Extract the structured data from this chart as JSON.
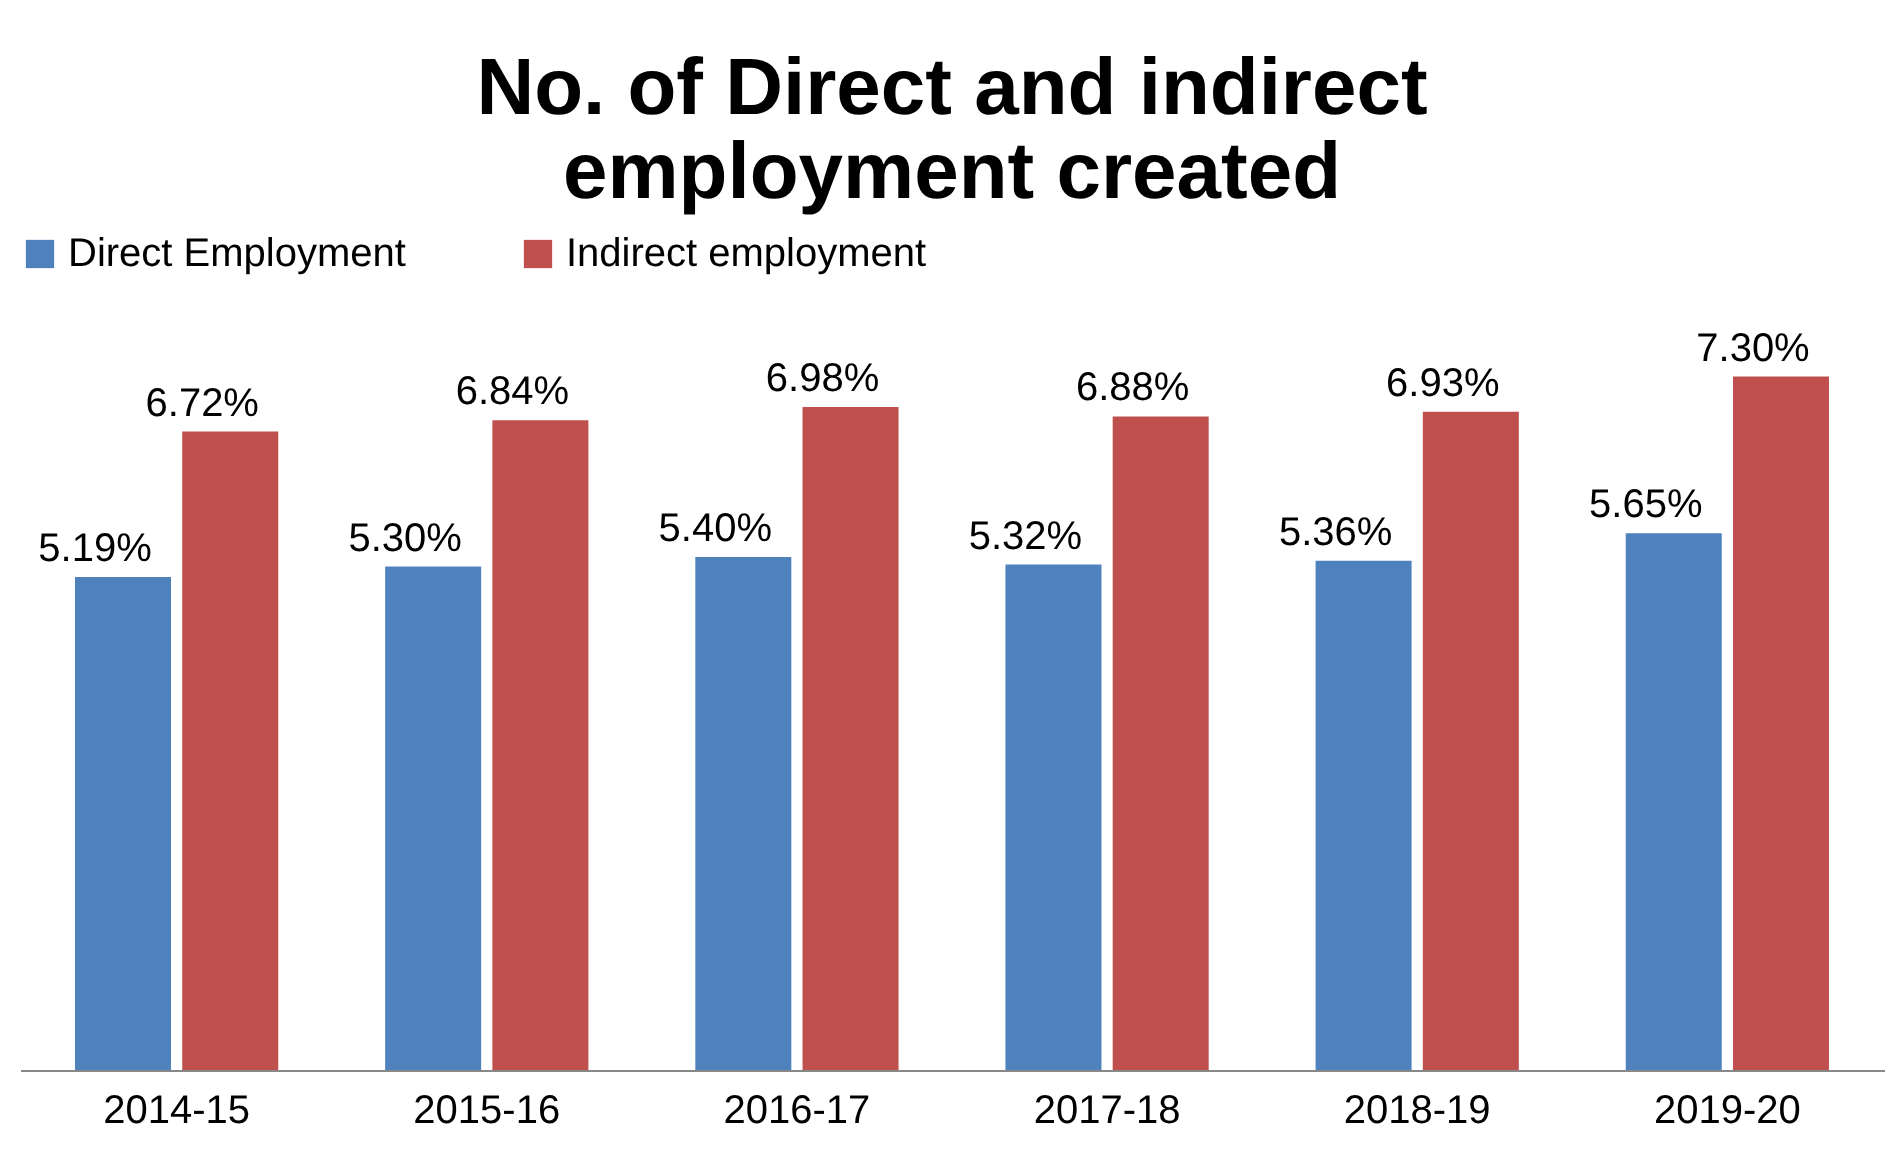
{
  "chart_data": {
    "type": "bar",
    "title": [
      "No. of Direct and indirect",
      "employment created"
    ],
    "categories": [
      "2014-15",
      "2015-16",
      "2016-17",
      "2017-18",
      "2018-19",
      "2019-20"
    ],
    "series": [
      {
        "name": "Direct  Employment",
        "color": "#4f81bd",
        "values": [
          5.19,
          5.3,
          5.4,
          5.32,
          5.36,
          5.65
        ],
        "value_labels": [
          "5.19%",
          "5.30%",
          "5.40%",
          "5.32%",
          "5.36%",
          "5.65%"
        ]
      },
      {
        "name": "Indirect employment",
        "color": "#c0504d",
        "values": [
          6.72,
          6.84,
          6.98,
          6.88,
          6.93,
          7.3
        ],
        "value_labels": [
          "6.72%",
          "6.84%",
          "6.98%",
          "6.88%",
          "6.93%",
          "7.30%"
        ]
      }
    ],
    "legend": "top",
    "grid": false,
    "tick_labels": "x"
  }
}
